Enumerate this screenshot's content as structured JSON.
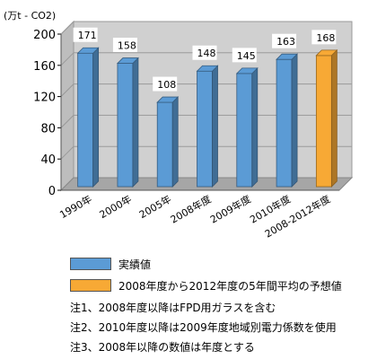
{
  "chart_data": {
    "type": "bar",
    "unit_label": "(万t - CO2)",
    "categories": [
      "1990年",
      "2000年",
      "2005年",
      "2008年度",
      "2009年度",
      "2010年度",
      "2008-2012年度"
    ],
    "values": [
      171,
      158,
      108,
      148,
      145,
      163,
      168
    ],
    "value_labels": [
      "171",
      "158",
      "108",
      "148",
      "145",
      "163",
      "168"
    ],
    "highlight_index": 6,
    "ylim": [
      0,
      200
    ],
    "yticks": [
      0,
      40,
      80,
      120,
      160,
      200
    ],
    "grid": true,
    "colors": {
      "actual": "#5b9bd5",
      "forecast": "#f7a935"
    }
  },
  "legend": [
    {
      "label": "実績値",
      "color": "#5b9bd5"
    },
    {
      "label": "2008年度から2012年度の5年間平均の予想値",
      "color": "#f7a935"
    }
  ],
  "notes": [
    "注1、2008年度以降はFPD用ガラスを含む",
    "注2、2010年度以降は2009年度地域別電力係数を使用",
    "注3、2008年以降の数値は年度とする"
  ]
}
